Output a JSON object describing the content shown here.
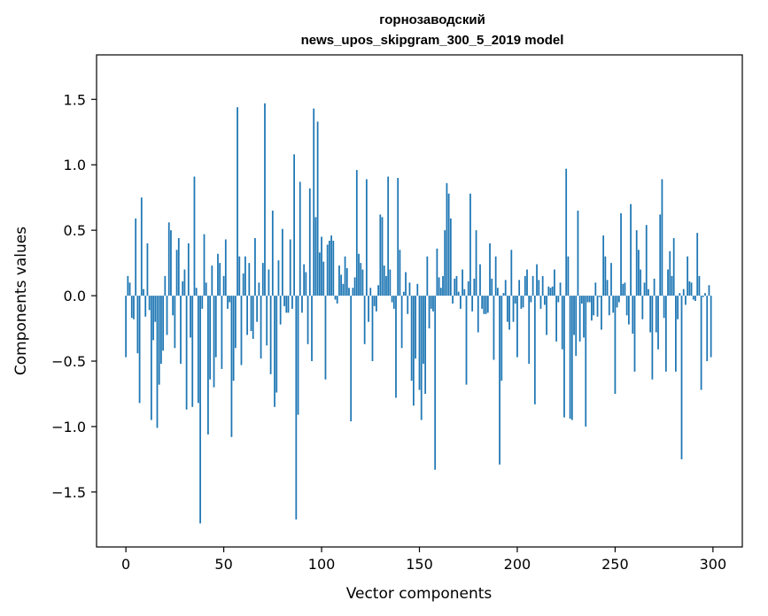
{
  "chart_data": {
    "type": "bar",
    "title": "горнозаводский",
    "subtitle": "news_upos_skipgram_300_5_2019 model",
    "xlabel": "Vector components",
    "ylabel": "Components values",
    "xlim": [
      -15,
      315
    ],
    "ylim": [
      -1.92,
      1.84
    ],
    "xticks": [
      0,
      50,
      100,
      150,
      200,
      250,
      300
    ],
    "yticks": [
      -1.5,
      -1.0,
      -0.5,
      0.0,
      0.5,
      1.0,
      1.5
    ],
    "ytick_labels": [
      "−1.5",
      "−1.0",
      "−0.5",
      "0.0",
      "0.5",
      "1.0",
      "1.5"
    ],
    "xtick_labels": [
      "0",
      "50",
      "100",
      "150",
      "200",
      "250",
      "300"
    ],
    "bar_color": "#1f77b4",
    "grid": false,
    "x": [
      0,
      1,
      2,
      3,
      4,
      5,
      6,
      7,
      8,
      9,
      10,
      11,
      12,
      13,
      14,
      15,
      16,
      17,
      18,
      19,
      20,
      21,
      22,
      23,
      24,
      25,
      26,
      27,
      28,
      29,
      30,
      31,
      32,
      33,
      34,
      35,
      36,
      37,
      38,
      39,
      40,
      41,
      42,
      43,
      44,
      45,
      46,
      47,
      48,
      49,
      50,
      51,
      52,
      53,
      54,
      55,
      56,
      57,
      58,
      59,
      60,
      61,
      62,
      63,
      64,
      65,
      66,
      67,
      68,
      69,
      70,
      71,
      72,
      73,
      74,
      75,
      76,
      77,
      78,
      79,
      80,
      81,
      82,
      83,
      84,
      85,
      86,
      87,
      88,
      89,
      90,
      91,
      92,
      93,
      94,
      95,
      96,
      97,
      98,
      99,
      100,
      101,
      102,
      103,
      104,
      105,
      106,
      107,
      108,
      109,
      110,
      111,
      112,
      113,
      114,
      115,
      116,
      117,
      118,
      119,
      120,
      121,
      122,
      123,
      124,
      125,
      126,
      127,
      128,
      129,
      130,
      131,
      132,
      133,
      134,
      135,
      136,
      137,
      138,
      139,
      140,
      141,
      142,
      143,
      144,
      145,
      146,
      147,
      148,
      149,
      150,
      151,
      152,
      153,
      154,
      155,
      156,
      157,
      158,
      159,
      160,
      161,
      162,
      163,
      164,
      165,
      166,
      167,
      168,
      169,
      170,
      171,
      172,
      173,
      174,
      175,
      176,
      177,
      178,
      179,
      180,
      181,
      182,
      183,
      184,
      185,
      186,
      187,
      188,
      189,
      190,
      191,
      192,
      193,
      194,
      195,
      196,
      197,
      198,
      199,
      200,
      201,
      202,
      203,
      204,
      205,
      206,
      207,
      208,
      209,
      210,
      211,
      212,
      213,
      214,
      215,
      216,
      217,
      218,
      219,
      220,
      221,
      222,
      223,
      224,
      225,
      226,
      227,
      228,
      229,
      230,
      231,
      232,
      233,
      234,
      235,
      236,
      237,
      238,
      239,
      240,
      241,
      242,
      243,
      244,
      245,
      246,
      247,
      248,
      249,
      250,
      251,
      252,
      253,
      254,
      255,
      256,
      257,
      258,
      259,
      260,
      261,
      262,
      263,
      264,
      265,
      266,
      267,
      268,
      269,
      270,
      271,
      272,
      273,
      274,
      275,
      276,
      277,
      278,
      279,
      280,
      281,
      282,
      283,
      284,
      285,
      286,
      287,
      288,
      289,
      290,
      291,
      292,
      293,
      294,
      295,
      296,
      297,
      298,
      299
    ],
    "values": [
      -0.47,
      0.15,
      0.1,
      -0.17,
      -0.18,
      0.59,
      -0.44,
      -0.82,
      0.75,
      0.05,
      -0.16,
      0.4,
      -0.11,
      -0.95,
      -0.34,
      -0.2,
      -1.01,
      -0.68,
      -0.52,
      -0.42,
      0.15,
      -0.3,
      0.56,
      0.5,
      -0.15,
      -0.4,
      0.35,
      0.44,
      -0.52,
      0.11,
      0.2,
      -0.87,
      0.4,
      -0.32,
      -0.85,
      0.91,
      0.06,
      -0.82,
      -1.74,
      -0.1,
      0.47,
      0.1,
      -1.06,
      -0.64,
      0.23,
      -0.7,
      -0.47,
      0.32,
      0.25,
      -0.56,
      0.15,
      0.43,
      -0.1,
      -0.05,
      -1.08,
      -0.65,
      -0.4,
      1.44,
      0.3,
      -0.53,
      0.17,
      0.3,
      -0.3,
      0.25,
      -0.27,
      -0.33,
      0.44,
      -0.2,
      0.1,
      -0.48,
      0.25,
      1.47,
      -0.38,
      0.2,
      -0.6,
      0.65,
      -0.85,
      -0.74,
      0.27,
      -0.22,
      0.51,
      -0.08,
      -0.13,
      -0.13,
      0.43,
      -0.1,
      1.08,
      -1.71,
      -0.91,
      0.87,
      -0.13,
      0.24,
      0.18,
      -0.37,
      0.82,
      -0.5,
      1.43,
      0.6,
      1.33,
      0.33,
      0.45,
      0.26,
      -0.64,
      0.39,
      0.42,
      0.46,
      0.42,
      -0.03,
      -0.06,
      0.23,
      0.16,
      0.09,
      0.3,
      0.21,
      0.06,
      -0.96,
      0.06,
      0.14,
      0.96,
      0.32,
      0.25,
      0.2,
      -0.37,
      0.89,
      -0.2,
      0.06,
      -0.5,
      -0.08,
      -0.12,
      0.08,
      0.62,
      0.6,
      0.23,
      0.15,
      0.91,
      0.2,
      -0.05,
      -0.1,
      -0.78,
      0.9,
      0.35,
      -0.4,
      0.03,
      0.18,
      -0.14,
      0.1,
      -0.65,
      -0.84,
      -0.48,
      0.09,
      -0.72,
      -0.95,
      -0.52,
      -0.75,
      0.3,
      -0.25,
      -0.1,
      -0.12,
      -1.33,
      0.36,
      0.14,
      0.06,
      0.15,
      0.5,
      0.86,
      0.78,
      0.59,
      -0.06,
      0.13,
      0.15,
      0.03,
      -0.1,
      0.2,
      0.05,
      -0.68,
      0.11,
      0.78,
      -0.12,
      0.13,
      0.5,
      -0.28,
      0.24,
      -0.1,
      -0.14,
      -0.14,
      -0.13,
      0.4,
      0.13,
      -0.49,
      0.3,
      0.06,
      -1.29,
      -0.65,
      0.02,
      0.12,
      -0.2,
      -0.26,
      0.35,
      -0.2,
      -0.06,
      -0.47,
      0.12,
      -0.1,
      -0.09,
      0.15,
      0.2,
      -0.52,
      -0.05,
      0.15,
      -0.83,
      0.24,
      0.12,
      -0.1,
      0.15,
      -0.07,
      -0.3,
      0.07,
      0.06,
      0.07,
      0.2,
      -0.35,
      -0.05,
      0.1,
      -0.41,
      -0.93,
      0.97,
      0.3,
      -0.94,
      -0.95,
      -0.3,
      -0.46,
      0.65,
      -0.35,
      -0.06,
      -0.32,
      -1.0,
      -0.05,
      -0.05,
      -0.19,
      -0.15,
      0.1,
      -0.16,
      -0.01,
      -0.26,
      0.46,
      0.3,
      0.12,
      -0.15,
      0.25,
      -0.13,
      -0.75,
      -0.09,
      -0.05,
      0.63,
      0.09,
      0.1,
      -0.15,
      -0.22,
      0.7,
      -0.29,
      -0.58,
      0.5,
      0.35,
      0.2,
      -0.18,
      0.1,
      0.54,
      0.05,
      -0.28,
      -0.64,
      0.13,
      -0.28,
      -0.41,
      0.62,
      0.89,
      -0.17,
      -0.58,
      0.2,
      0.34,
      0.15,
      0.44,
      -0.58,
      -0.18,
      0.02,
      -1.25,
      0.05,
      -0.07,
      0.3,
      0.11,
      0.1,
      -0.03,
      -0.04,
      0.48,
      0.15,
      -0.72,
      -0.01,
      0.02,
      -0.5,
      0.08,
      -0.47
    ]
  }
}
